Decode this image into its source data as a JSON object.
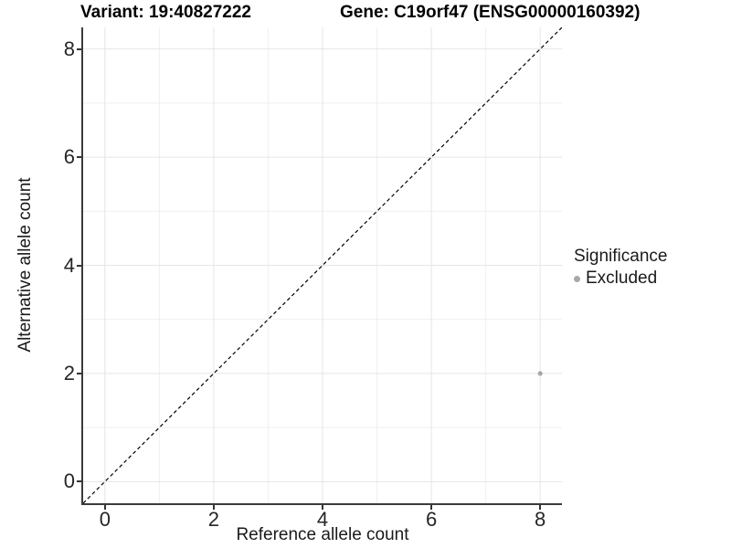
{
  "chart_data": {
    "type": "scatter",
    "title_left": "Variant: 19:40827222",
    "title_right": "Gene: C19orf47 (ENSG00000160392)",
    "xlabel": "Reference allele count",
    "ylabel": "Alternative allele count",
    "xlim": [
      -0.4,
      8.4
    ],
    "ylim": [
      -0.4,
      8.4
    ],
    "x_ticks": [
      0,
      2,
      4,
      6,
      8
    ],
    "y_ticks": [
      0,
      2,
      4,
      6,
      8
    ],
    "grid_minor_x": [
      1,
      3,
      5,
      7
    ],
    "grid_minor_y": [
      1,
      3,
      5,
      7
    ],
    "grid": "on",
    "points": [
      {
        "x": 8,
        "y": 2,
        "series": "Excluded"
      }
    ],
    "reference_line": {
      "kind": "identity",
      "slope": 1,
      "intercept": 0,
      "style": "dashed",
      "color": "#000000"
    },
    "legend": {
      "title": "Significance",
      "position": "right",
      "entries": [
        {
          "label": "Excluded",
          "color": "#a8a8a8"
        }
      ]
    }
  },
  "colors": {
    "point": "#a8a8a8",
    "grid_major": "#e5e5e5",
    "grid_minor": "#efefef",
    "axis_line": "#3b3b3b",
    "tick_mark": "#333333",
    "background": "#ffffff"
  }
}
